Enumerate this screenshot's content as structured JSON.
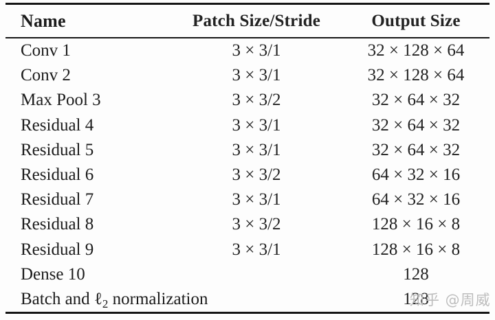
{
  "table": {
    "title_semantic": "CNN architecture overview table",
    "columns": [
      "Name",
      "Patch Size/Stride",
      "Output Size"
    ],
    "rows": [
      {
        "name": "Conv 1",
        "patch": "3 × 3/1",
        "output": "32 × 128 × 64"
      },
      {
        "name": "Conv 2",
        "patch": "3 × 3/1",
        "output": "32 × 128 × 64"
      },
      {
        "name": "Max Pool 3",
        "patch": "3 × 3/2",
        "output": "32 × 64 × 32"
      },
      {
        "name": "Residual 4",
        "patch": "3 × 3/1",
        "output": "32 × 64 × 32"
      },
      {
        "name": "Residual 5",
        "patch": "3 × 3/1",
        "output": "32 × 64 × 32"
      },
      {
        "name": "Residual 6",
        "patch": "3 × 3/2",
        "output": "64 × 32 × 16"
      },
      {
        "name": "Residual 7",
        "patch": "3 × 3/1",
        "output": "64 × 32 × 16"
      },
      {
        "name": "Residual 8",
        "patch": "3 × 3/2",
        "output": "128 × 16 × 8"
      },
      {
        "name": "Residual 9",
        "patch": "3 × 3/1",
        "output": "128 × 16 × 8"
      },
      {
        "name": "Dense 10",
        "patch": "",
        "output": "128"
      },
      {
        "name_parts": [
          "Batch and ",
          "ℓ",
          "2",
          " normalization"
        ],
        "patch": "",
        "output": "128"
      }
    ]
  },
  "watermark": {
    "text": "知乎 @周威",
    "color": "#bdbdbd"
  },
  "colors": {
    "text": "#1b1b1b",
    "rule": "#151515",
    "background": "#fdfdfd"
  }
}
